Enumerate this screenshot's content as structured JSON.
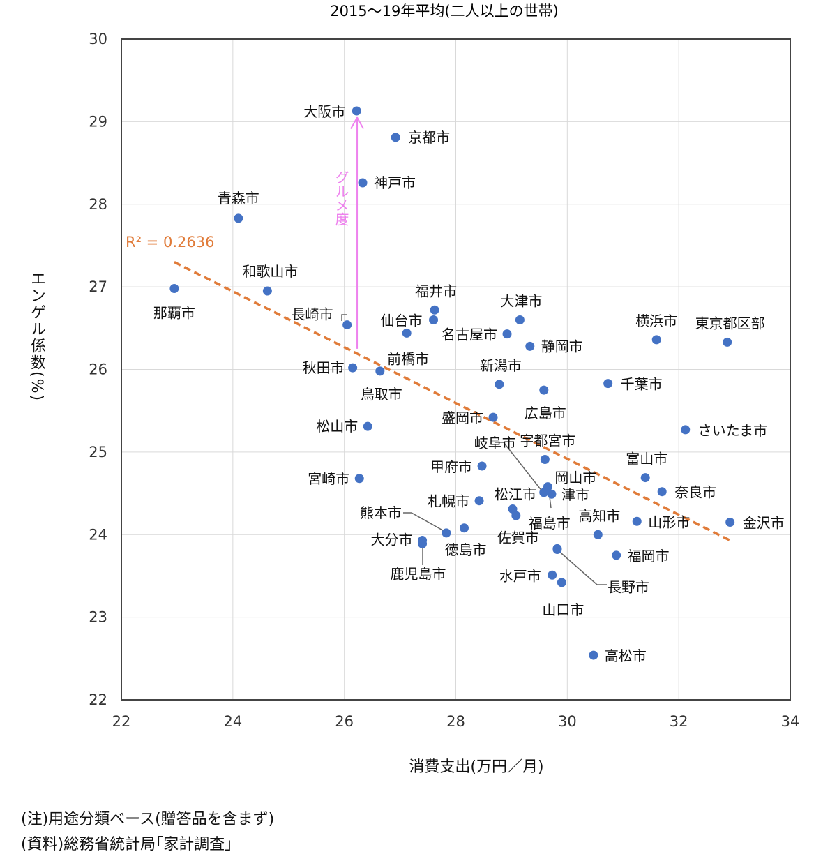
{
  "chart_data": {
    "type": "scatter",
    "subtitle": "2015～19年平均(二人以上の世帯)",
    "xlabel": "消費支出(万円／月)",
    "ylabel": "エンゲル係数(%)",
    "xlim": [
      22,
      34
    ],
    "ylim": [
      22,
      30
    ],
    "xticks": [
      "22",
      "24",
      "26",
      "28",
      "30",
      "32",
      "34"
    ],
    "yticks": [
      "30",
      "29",
      "28",
      "27",
      "26",
      "25",
      "24",
      "23",
      "22"
    ],
    "grid": true,
    "point_color": "#4472c4",
    "trend_color": "#e07b39",
    "arrow_color": "#ee82ee",
    "r2_label": "R² = 0.2636",
    "trendline": {
      "x": [
        22.95,
        32.95
      ],
      "y": [
        27.3,
        23.92
      ]
    },
    "gourmet_label": "グルメ度",
    "gourmet_arrow": {
      "x": 26.23,
      "y_from": 26.25,
      "y_to": 29.05
    },
    "points": [
      {
        "name": "那覇市",
        "x": 22.95,
        "y": 26.98
      },
      {
        "name": "青森市",
        "x": 24.1,
        "y": 27.83
      },
      {
        "name": "和歌山市",
        "x": 24.62,
        "y": 26.95
      },
      {
        "name": "長崎市",
        "x": 26.05,
        "y": 26.54
      },
      {
        "name": "秋田市",
        "x": 26.15,
        "y": 26.02
      },
      {
        "name": "松山市",
        "x": 26.42,
        "y": 25.31
      },
      {
        "name": "宮崎市",
        "x": 26.27,
        "y": 24.68
      },
      {
        "name": "大阪市",
        "x": 26.22,
        "y": 29.13
      },
      {
        "name": "京都市",
        "x": 26.92,
        "y": 28.81
      },
      {
        "name": "神戸市",
        "x": 26.33,
        "y": 28.26
      },
      {
        "name": "福井市",
        "x": 27.62,
        "y": 26.72
      },
      {
        "name": "仙台市",
        "x": 27.6,
        "y": 26.6
      },
      {
        "name": "前橋市",
        "x": 27.12,
        "y": 26.44
      },
      {
        "name": "鳥取市",
        "x": 26.64,
        "y": 25.98
      },
      {
        "name": "大津市",
        "x": 29.15,
        "y": 26.6
      },
      {
        "name": "名古屋市",
        "x": 28.92,
        "y": 26.43
      },
      {
        "name": "静岡市",
        "x": 29.33,
        "y": 26.28
      },
      {
        "name": "新潟市",
        "x": 28.78,
        "y": 25.82
      },
      {
        "name": "広島市",
        "x": 29.58,
        "y": 25.75
      },
      {
        "name": "盛岡市",
        "x": 28.67,
        "y": 25.42
      },
      {
        "name": "宇都宮市",
        "x": 29.6,
        "y": 24.91
      },
      {
        "name": "岐阜市",
        "x": 29.58,
        "y": 24.51
      },
      {
        "name": "甲府市",
        "x": 28.47,
        "y": 24.83
      },
      {
        "name": "岡山市",
        "x": 29.65,
        "y": 24.58
      },
      {
        "name": "津市",
        "x": 29.72,
        "y": 24.49
      },
      {
        "name": "松江市",
        "x": 29.02,
        "y": 24.31
      },
      {
        "name": "札幌市",
        "x": 28.42,
        "y": 24.41
      },
      {
        "name": "福島市",
        "x": 29.08,
        "y": 24.23
      },
      {
        "name": "熊本市",
        "x": 27.83,
        "y": 24.02
      },
      {
        "name": "徳島市",
        "x": 28.15,
        "y": 24.08
      },
      {
        "name": "大分市",
        "x": 27.4,
        "y": 23.93
      },
      {
        "name": "鹿児島市",
        "x": 27.4,
        "y": 23.89
      },
      {
        "name": "佐賀市",
        "x": 29.82,
        "y": 23.82
      },
      {
        "name": "水戸市",
        "x": 29.73,
        "y": 23.51
      },
      {
        "name": "山口市",
        "x": 29.9,
        "y": 23.42
      },
      {
        "name": "長野市",
        "x": 29.82,
        "y": 23.83
      },
      {
        "name": "高知市",
        "x": 30.55,
        "y": 24.0
      },
      {
        "name": "福岡市",
        "x": 30.88,
        "y": 23.75
      },
      {
        "name": "高松市",
        "x": 30.47,
        "y": 22.54
      },
      {
        "name": "千葉市",
        "x": 30.73,
        "y": 25.83
      },
      {
        "name": "横浜市",
        "x": 31.6,
        "y": 26.36
      },
      {
        "name": "東京都区部",
        "x": 32.87,
        "y": 26.33
      },
      {
        "name": "さいたま市",
        "x": 32.12,
        "y": 25.27
      },
      {
        "name": "富山市",
        "x": 31.4,
        "y": 24.69
      },
      {
        "name": "奈良市",
        "x": 31.7,
        "y": 24.52
      },
      {
        "name": "山形市",
        "x": 31.25,
        "y": 24.16
      },
      {
        "name": "金沢市",
        "x": 32.92,
        "y": 24.15
      }
    ]
  },
  "notes": {
    "note": "(注)用途分類ベース(贈答品を含まず)",
    "source": "(資料)総務省統計局｢家計調査｣"
  }
}
